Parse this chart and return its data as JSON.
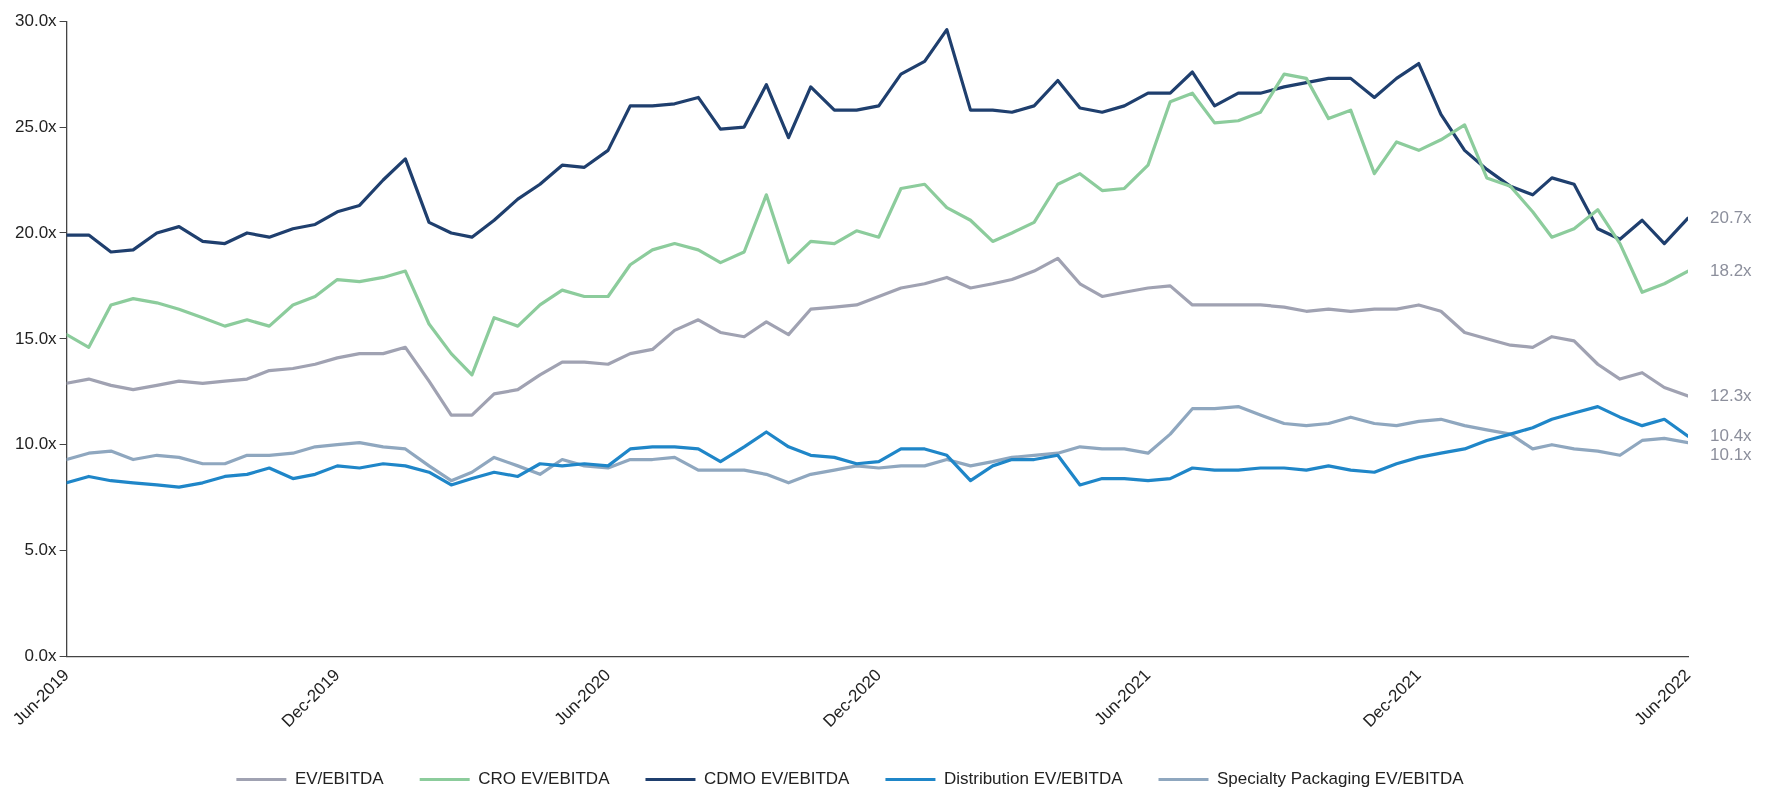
{
  "chart_data": {
    "type": "line",
    "x": [
      "2019-06-01",
      "2019-06-16",
      "2019-07-01",
      "2019-07-16",
      "2019-08-01",
      "2019-08-16",
      "2019-09-01",
      "2019-09-16",
      "2019-10-01",
      "2019-10-16",
      "2019-11-01",
      "2019-11-16",
      "2019-12-01",
      "2019-12-16",
      "2020-01-01",
      "2020-01-16",
      "2020-02-01",
      "2020-02-16",
      "2020-03-01",
      "2020-03-16",
      "2020-04-01",
      "2020-04-16",
      "2020-05-01",
      "2020-05-16",
      "2020-06-01",
      "2020-06-16",
      "2020-07-01",
      "2020-07-16",
      "2020-08-01",
      "2020-08-16",
      "2020-09-01",
      "2020-09-16",
      "2020-10-01",
      "2020-10-16",
      "2020-11-01",
      "2020-11-16",
      "2020-12-01",
      "2020-12-16",
      "2021-01-01",
      "2021-01-16",
      "2021-02-01",
      "2021-02-16",
      "2021-03-01",
      "2021-03-16",
      "2021-04-01",
      "2021-04-16",
      "2021-05-01",
      "2021-05-16",
      "2021-06-01",
      "2021-06-16",
      "2021-07-01",
      "2021-07-16",
      "2021-08-01",
      "2021-08-16",
      "2021-09-01",
      "2021-09-16",
      "2021-10-01",
      "2021-10-16",
      "2021-11-01",
      "2021-11-16",
      "2021-12-01",
      "2021-12-16",
      "2022-01-01",
      "2022-01-16",
      "2022-02-01",
      "2022-02-16",
      "2022-03-01",
      "2022-03-16",
      "2022-04-01",
      "2022-04-16",
      "2022-05-01",
      "2022-05-16",
      "2022-06-01"
    ],
    "series": [
      {
        "name": "EV/EBITDA",
        "color": "#a0a2b2",
        "values": [
          12.9,
          13.1,
          12.8,
          12.6,
          12.8,
          13.0,
          12.9,
          13.0,
          13.1,
          13.5,
          13.6,
          13.8,
          14.1,
          14.3,
          14.3,
          14.6,
          13.0,
          11.4,
          11.4,
          12.4,
          12.6,
          13.3,
          13.9,
          13.9,
          13.8,
          14.3,
          14.5,
          15.4,
          15.9,
          15.3,
          15.1,
          15.8,
          15.2,
          16.4,
          16.5,
          16.6,
          17.0,
          17.4,
          17.6,
          17.9,
          17.4,
          17.6,
          17.8,
          18.2,
          18.8,
          17.6,
          17.0,
          17.2,
          17.4,
          17.5,
          16.6,
          16.6,
          16.6,
          16.6,
          16.5,
          16.3,
          16.4,
          16.3,
          16.4,
          16.4,
          16.6,
          16.3,
          15.3,
          15.0,
          14.7,
          14.6,
          15.1,
          14.9,
          13.8,
          13.1,
          13.4,
          12.7,
          12.3
        ]
      },
      {
        "name": "CRO EV/EBITDA",
        "color": "#8ccc9c",
        "values": [
          15.2,
          14.6,
          16.6,
          16.9,
          16.7,
          16.4,
          16.0,
          15.6,
          15.9,
          15.6,
          16.6,
          17.0,
          17.8,
          17.7,
          17.9,
          18.2,
          15.7,
          14.3,
          13.3,
          16.0,
          15.6,
          16.6,
          17.3,
          17.0,
          17.0,
          18.5,
          19.2,
          19.5,
          19.2,
          18.6,
          19.1,
          21.8,
          18.6,
          19.6,
          19.5,
          20.1,
          19.8,
          22.1,
          22.3,
          21.2,
          20.6,
          19.6,
          20.0,
          20.5,
          22.3,
          22.8,
          22.0,
          22.1,
          23.2,
          26.2,
          26.6,
          25.2,
          25.3,
          25.7,
          27.5,
          27.3,
          25.4,
          25.8,
          22.8,
          24.3,
          23.9,
          24.4,
          25.1,
          22.6,
          22.2,
          21.0,
          19.8,
          20.2,
          21.1,
          19.5,
          17.2,
          17.6,
          18.2
        ]
      },
      {
        "name": "CDMO EV/EBITDA",
        "color": "#1f3f6e",
        "values": [
          19.9,
          19.9,
          19.1,
          19.2,
          20.0,
          20.3,
          19.6,
          19.5,
          20.0,
          19.8,
          20.2,
          20.4,
          21.0,
          21.3,
          22.5,
          23.5,
          20.5,
          20.0,
          19.8,
          20.6,
          21.6,
          22.3,
          23.2,
          23.1,
          23.9,
          26.0,
          26.0,
          26.1,
          26.4,
          24.9,
          25.0,
          27.0,
          24.5,
          26.9,
          25.8,
          25.8,
          26.0,
          27.5,
          28.1,
          29.6,
          25.8,
          25.8,
          25.7,
          26.0,
          27.2,
          25.9,
          25.7,
          26.0,
          26.6,
          26.6,
          27.6,
          26.0,
          26.6,
          26.6,
          26.9,
          27.1,
          27.3,
          27.3,
          26.4,
          27.3,
          28.0,
          25.6,
          23.9,
          23.0,
          22.2,
          21.8,
          22.6,
          22.3,
          20.2,
          19.7,
          20.6,
          19.5,
          20.7
        ]
      },
      {
        "name": "Distribution EV/EBITDA",
        "color": "#1f86c8",
        "values": [
          8.2,
          8.5,
          8.3,
          8.2,
          8.1,
          8.0,
          8.2,
          8.5,
          8.6,
          8.9,
          8.4,
          8.6,
          9.0,
          8.9,
          9.1,
          9.0,
          8.7,
          8.1,
          8.4,
          8.7,
          8.5,
          9.1,
          9.0,
          9.1,
          9.0,
          9.8,
          9.9,
          9.9,
          9.8,
          9.2,
          9.9,
          10.6,
          9.9,
          9.5,
          9.4,
          9.1,
          9.2,
          9.8,
          9.8,
          9.5,
          8.3,
          9.0,
          9.3,
          9.3,
          9.5,
          8.1,
          8.4,
          8.4,
          8.3,
          8.4,
          8.9,
          8.8,
          8.8,
          8.9,
          8.9,
          8.8,
          9.0,
          8.8,
          8.7,
          9.1,
          9.4,
          9.6,
          9.8,
          10.2,
          10.5,
          10.8,
          11.2,
          11.5,
          11.8,
          11.3,
          10.9,
          11.2,
          10.4
        ]
      },
      {
        "name": "Specialty Packaging EV/EBITDA",
        "color": "#8fa7bf",
        "values": [
          9.3,
          9.6,
          9.7,
          9.3,
          9.5,
          9.4,
          9.1,
          9.1,
          9.5,
          9.5,
          9.6,
          9.9,
          10.0,
          10.1,
          9.9,
          9.8,
          9.0,
          8.3,
          8.7,
          9.4,
          9.0,
          8.6,
          9.3,
          9.0,
          8.9,
          9.3,
          9.3,
          9.4,
          8.8,
          8.8,
          8.8,
          8.6,
          8.2,
          8.6,
          8.8,
          9.0,
          8.9,
          9.0,
          9.0,
          9.3,
          9.0,
          9.2,
          9.4,
          9.5,
          9.6,
          9.9,
          9.8,
          9.8,
          9.6,
          10.5,
          11.7,
          11.7,
          11.8,
          11.4,
          11.0,
          10.9,
          11.0,
          11.3,
          11.0,
          10.9,
          11.1,
          11.2,
          10.9,
          10.7,
          10.5,
          9.8,
          10.0,
          9.8,
          9.7,
          9.5,
          10.2,
          10.3,
          10.1
        ]
      }
    ],
    "xlim": [
      "2019-06-01",
      "2022-06-01"
    ],
    "xticks": [
      {
        "value": "2019-06-01",
        "label": "Jun-2019"
      },
      {
        "value": "2019-12-01",
        "label": "Dec-2019"
      },
      {
        "value": "2020-06-01",
        "label": "Jun-2020"
      },
      {
        "value": "2020-12-01",
        "label": "Dec-2020"
      },
      {
        "value": "2021-06-01",
        "label": "Jun-2021"
      },
      {
        "value": "2021-12-01",
        "label": "Dec-2021"
      },
      {
        "value": "2022-06-01",
        "label": "Jun-2022"
      }
    ],
    "ylim": [
      0,
      30
    ],
    "yticks": [
      {
        "value": 0,
        "label": "0.0x"
      },
      {
        "value": 5,
        "label": "5.0x"
      },
      {
        "value": 10,
        "label": "10.0x"
      },
      {
        "value": 15,
        "label": "15.0x"
      },
      {
        "value": 20,
        "label": "20.0x"
      },
      {
        "value": 25,
        "label": "25.0x"
      },
      {
        "value": 30,
        "label": "30.0x"
      }
    ],
    "annotations": [
      {
        "text": "20.7x",
        "x": "2022-06-01",
        "y": 20.7
      },
      {
        "text": "18.2x",
        "x": "2022-06-01",
        "y": 18.2
      },
      {
        "text": "12.3x",
        "x": "2022-06-01",
        "y": 12.3
      },
      {
        "text": "10.4x",
        "x": "2022-06-01",
        "y": 10.4
      },
      {
        "text": "10.1x",
        "x": "2022-06-01",
        "y": 10.1
      }
    ],
    "grid": false,
    "legend": "bottom",
    "marker": "none",
    "line_style": "solid"
  }
}
